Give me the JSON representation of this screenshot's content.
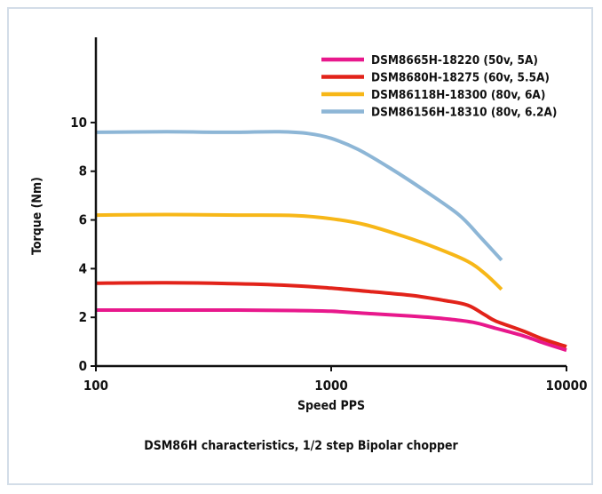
{
  "chart_data": {
    "type": "line",
    "xlabel": "Speed PPS",
    "ylabel": "Torque (Nm)",
    "x_scale": "log",
    "xlim": [
      100,
      10000
    ],
    "ylim": [
      0,
      13.5
    ],
    "x_ticks": [
      100,
      1000,
      10000
    ],
    "x_tick_labels": [
      "100",
      "1000",
      "10000"
    ],
    "y_ticks": [
      0,
      2,
      4,
      6,
      8,
      10
    ],
    "y_tick_labels": [
      "0",
      "2",
      "4",
      "6",
      "8",
      "10"
    ],
    "grid": false,
    "legend_position": "top-right",
    "series": [
      {
        "name": "DSM8665H-18220 (50v, 5A)",
        "color": "#e8188c",
        "points": [
          [
            100,
            2.3
          ],
          [
            200,
            2.3
          ],
          [
            400,
            2.3
          ],
          [
            700,
            2.28
          ],
          [
            1000,
            2.25
          ],
          [
            1500,
            2.15
          ],
          [
            2200,
            2.05
          ],
          [
            3000,
            1.95
          ],
          [
            4000,
            1.8
          ],
          [
            5000,
            1.55
          ],
          [
            6500,
            1.25
          ],
          [
            8000,
            0.95
          ],
          [
            10000,
            0.65
          ]
        ]
      },
      {
        "name": "DSM8680H-18275 (60v, 5.5A)",
        "color": "#e2231a",
        "points": [
          [
            100,
            3.4
          ],
          [
            200,
            3.42
          ],
          [
            400,
            3.38
          ],
          [
            700,
            3.3
          ],
          [
            1000,
            3.2
          ],
          [
            1500,
            3.05
          ],
          [
            2200,
            2.9
          ],
          [
            3000,
            2.7
          ],
          [
            3800,
            2.5
          ],
          [
            4500,
            2.1
          ],
          [
            5000,
            1.85
          ],
          [
            6500,
            1.45
          ],
          [
            8000,
            1.1
          ],
          [
            10000,
            0.8
          ]
        ]
      },
      {
        "name": "DSM86118H-18300 (80v, 6A)",
        "color": "#f7b718",
        "points": [
          [
            100,
            6.2
          ],
          [
            200,
            6.22
          ],
          [
            400,
            6.2
          ],
          [
            700,
            6.18
          ],
          [
            1000,
            6.05
          ],
          [
            1400,
            5.8
          ],
          [
            2000,
            5.35
          ],
          [
            2800,
            4.85
          ],
          [
            3800,
            4.3
          ],
          [
            4500,
            3.8
          ],
          [
            5300,
            3.15
          ]
        ]
      },
      {
        "name": "DSM86156H-18310 (80v, 6.2A)",
        "color": "#8db6d6",
        "points": [
          [
            100,
            9.6
          ],
          [
            200,
            9.62
          ],
          [
            350,
            9.6
          ],
          [
            600,
            9.62
          ],
          [
            800,
            9.55
          ],
          [
            1000,
            9.35
          ],
          [
            1300,
            8.9
          ],
          [
            1800,
            8.1
          ],
          [
            2500,
            7.2
          ],
          [
            3500,
            6.2
          ],
          [
            4300,
            5.3
          ],
          [
            5300,
            4.35
          ]
        ]
      }
    ]
  },
  "caption": "DSM86H characteristics, 1/2 step Bipolar chopper"
}
